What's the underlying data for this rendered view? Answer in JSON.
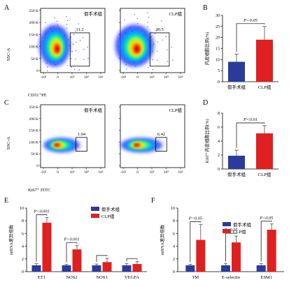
{
  "colors": {
    "blue": "#2b3b9b",
    "red": "#e02020",
    "axis": "#000000",
    "gate": "#000000",
    "density": [
      "#1a2bff",
      "#00a8ff",
      "#00e0c8",
      "#9cff3a",
      "#ffe000",
      "#ff7a00",
      "#e00000"
    ]
  },
  "chart_data": [
    {
      "panel": "A",
      "type": "scatter",
      "kind": "flow-cytometry",
      "y_ticks": [
        "250 K",
        "200 K",
        "150 K",
        "100 K",
        "50 K",
        "0"
      ],
      "x_ticks": [
        "-10³",
        "0",
        "10³",
        "10⁴",
        "10⁵"
      ],
      "ylabel": "SSC-A",
      "xlabel": "CD31⁺PE",
      "plots": [
        {
          "title": "假手术组",
          "gate_value": "11.2"
        },
        {
          "title": "CLP组",
          "gate_value": "20.5"
        }
      ]
    },
    {
      "panel": "B",
      "type": "bar",
      "categories": [
        "假手术组",
        "CLP组"
      ],
      "values": [
        9,
        19
      ],
      "errors": [
        3.5,
        6
      ],
      "ylabel": "内皮细胞比例(%)",
      "ylim": [
        0,
        30
      ],
      "y_ticks": [
        0,
        5,
        10,
        15,
        20,
        25,
        30
      ],
      "significance": [
        {
          "from": 0,
          "to": 1,
          "label": "P<0.05"
        }
      ]
    },
    {
      "panel": "C",
      "type": "scatter",
      "kind": "flow-cytometry",
      "y_ticks": [
        "250 K",
        "200 K",
        "150 K",
        "100 K",
        "50 K",
        "0"
      ],
      "x_ticks": [
        "-10³",
        "0",
        "10³",
        "10⁴",
        "10⁵"
      ],
      "ylabel": "SSC-A",
      "xlabel": "Ki67⁺ FITC",
      "plots": [
        {
          "title": "假手术组",
          "gate_value": "1.04"
        },
        {
          "title": "CLP组",
          "gate_value": "6.42"
        }
      ]
    },
    {
      "panel": "D",
      "type": "bar",
      "categories": [
        "假手术组",
        "CLP组"
      ],
      "values": [
        1.9,
        5.1
      ],
      "errors": [
        0.8,
        1.1
      ],
      "ylabel": "Ki67⁺内皮细胞比例(%)",
      "ylim": [
        0,
        8
      ],
      "y_ticks": [
        0,
        2,
        4,
        6,
        8
      ],
      "significance": [
        {
          "from": 0,
          "to": 1,
          "label": "P<0.01"
        }
      ]
    },
    {
      "panel": "E",
      "type": "bar",
      "categories": [
        "ET1",
        "NOS2",
        "NOS3",
        "VEGFA"
      ],
      "series": [
        {
          "name": "假手术组",
          "values": [
            1.0,
            1.0,
            1.0,
            1.0
          ],
          "errors": [
            0.25,
            0.15,
            0.2,
            0.3
          ]
        },
        {
          "name": "CLP组",
          "values": [
            7.7,
            3.5,
            1.5,
            1.2
          ],
          "errors": [
            0.8,
            0.6,
            0.6,
            0.4
          ]
        }
      ],
      "ylabel": "mRNA差异倍数",
      "ylim": [
        0,
        10
      ],
      "y_ticks": [
        0,
        2,
        4,
        6,
        8,
        10
      ],
      "significance": [
        {
          "group": 0,
          "label": "P<0.001"
        },
        {
          "group": 1,
          "label": "P<0.001"
        },
        {
          "group": 2,
          "label": ""
        },
        {
          "group": 3,
          "label": ""
        }
      ],
      "legend": "top-right"
    },
    {
      "panel": "F",
      "type": "bar",
      "categories": [
        "TM",
        "E-selectin",
        "ESM1"
      ],
      "series": [
        {
          "name": "假手术组",
          "values": [
            1.0,
            1.0,
            1.0
          ],
          "errors": [
            0.15,
            0.3,
            0.25
          ]
        },
        {
          "name": "CLP组",
          "values": [
            5.0,
            4.6,
            6.6
          ],
          "errors": [
            2.4,
            1.0,
            0.9
          ]
        }
      ],
      "ylabel": "mRNA差异倍数",
      "ylim": [
        0,
        10
      ],
      "y_ticks": [
        0,
        2,
        4,
        6,
        8,
        10
      ],
      "significance": [
        {
          "group": 0,
          "label": "P<0.05"
        },
        {
          "group": 1,
          "label": "P<0.05"
        },
        {
          "group": 2,
          "label": "P<0.05"
        }
      ],
      "legend": "top-center"
    }
  ]
}
